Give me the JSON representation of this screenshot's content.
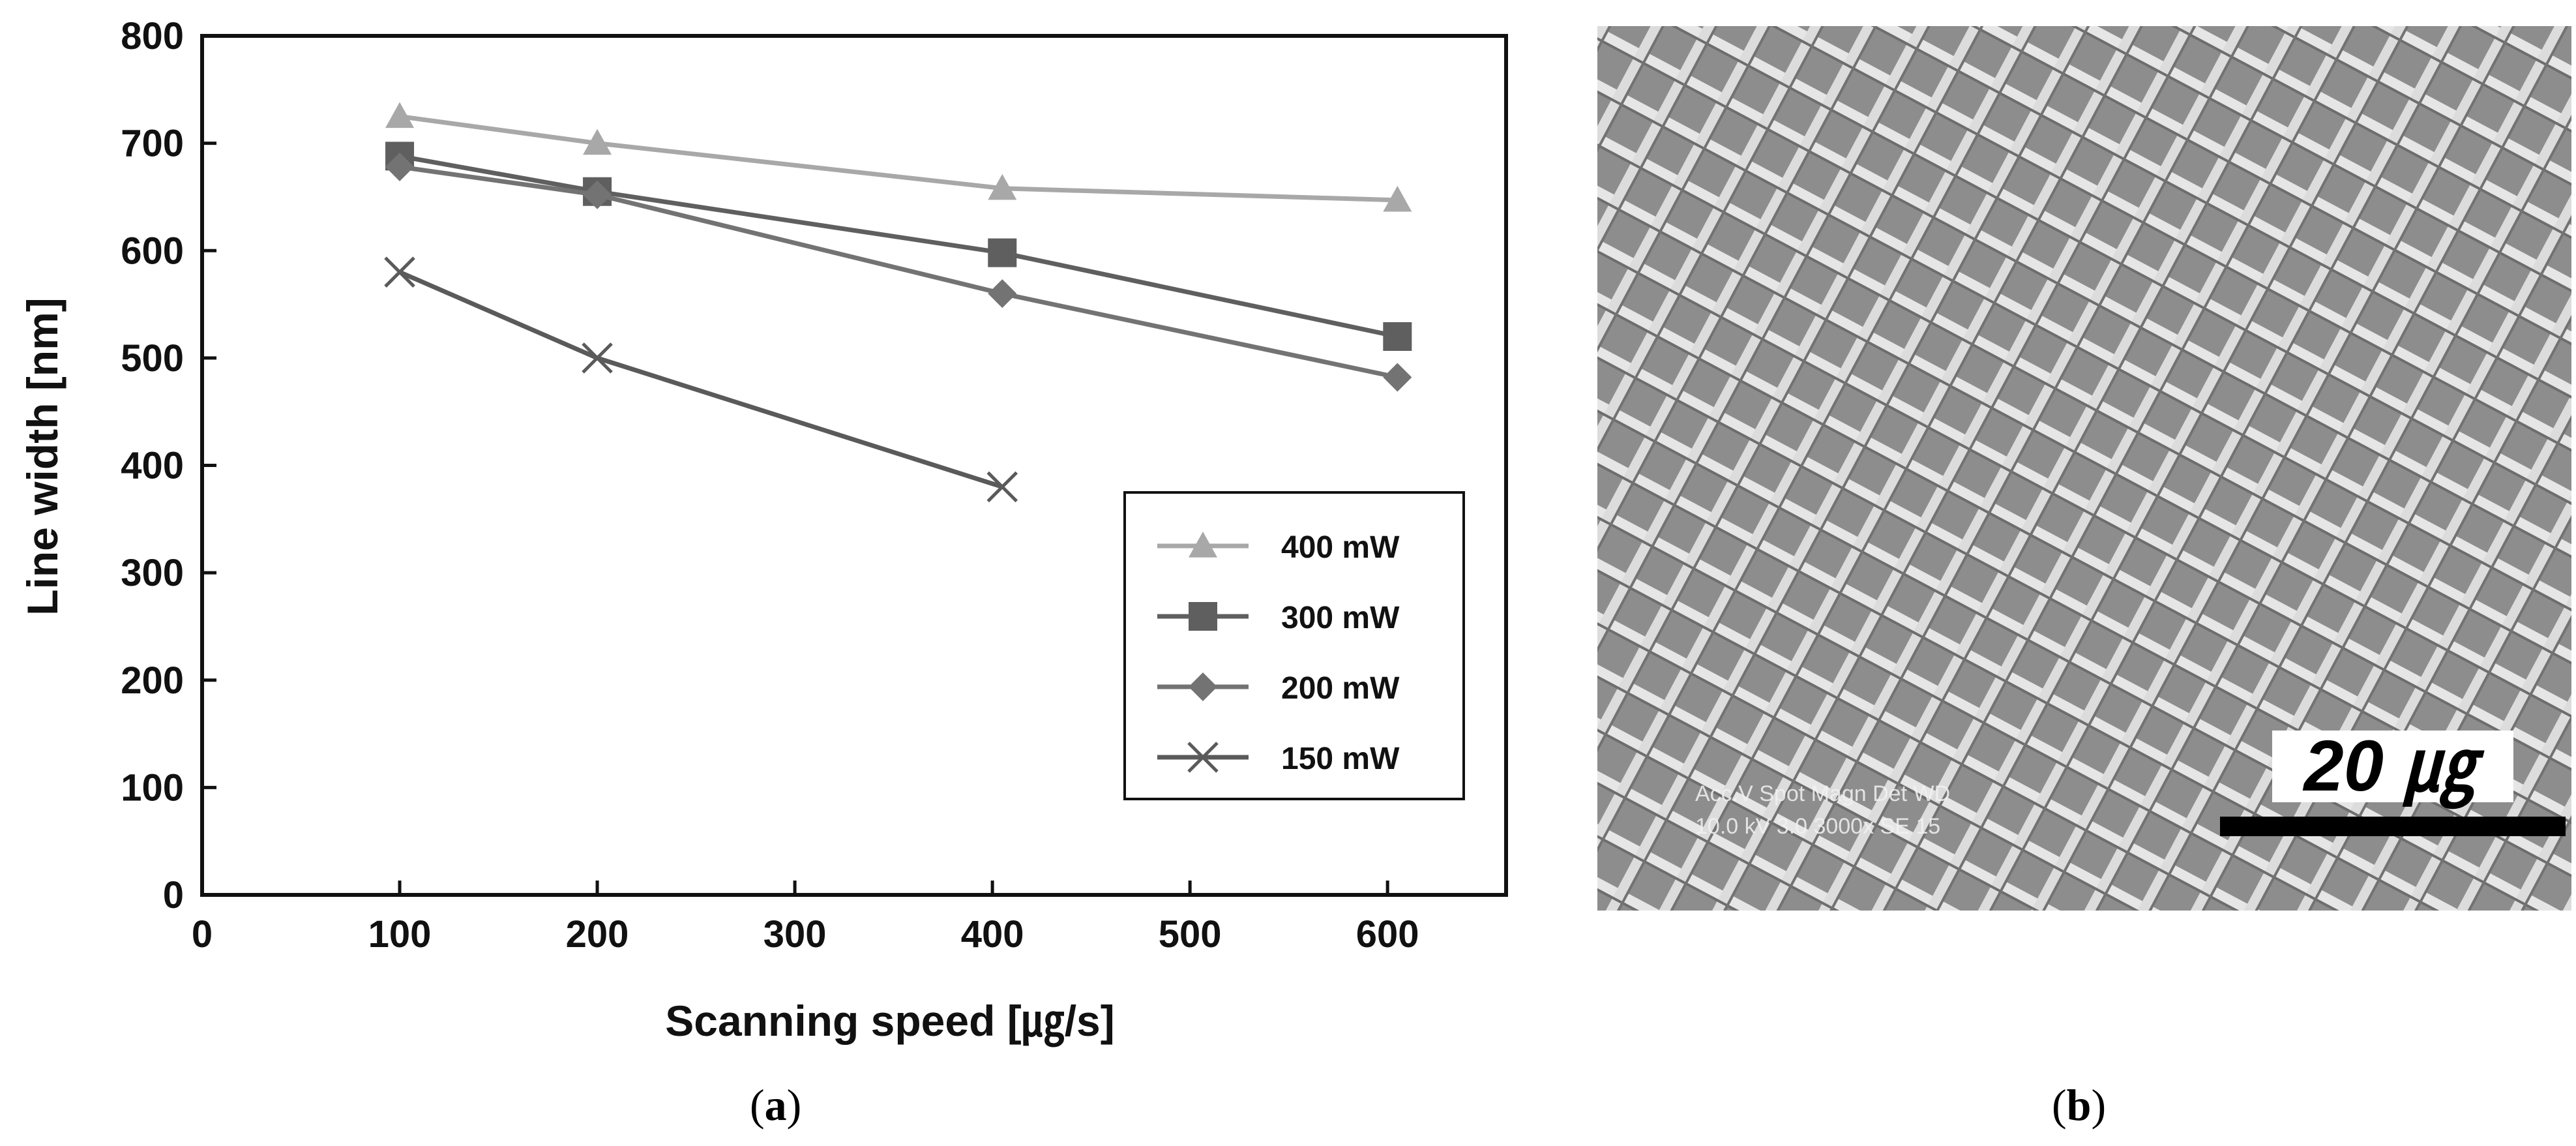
{
  "panels": {
    "a": "a",
    "b": "b"
  },
  "chart_data": {
    "type": "line",
    "title": "",
    "xlabel": "Scanning speed [㎍/s]",
    "ylabel": "Line width [nm]",
    "xlim": [
      0,
      660
    ],
    "ylim": [
      0,
      800
    ],
    "xticks": [
      0,
      100,
      200,
      300,
      400,
      500,
      600
    ],
    "yticks": [
      0,
      100,
      200,
      300,
      400,
      500,
      600,
      700,
      800
    ],
    "grid": false,
    "legend_position": "lower-right",
    "series": [
      {
        "name": "400 mW",
        "marker": "triangle",
        "color": "#a8a8a8",
        "x": [
          100,
          200,
          405,
          605
        ],
        "y": [
          725,
          700,
          658,
          647
        ]
      },
      {
        "name": "300 mW",
        "marker": "square",
        "color": "#5f5f5f",
        "x": [
          100,
          200,
          405,
          605
        ],
        "y": [
          688,
          655,
          598,
          520
        ]
      },
      {
        "name": "200 mW",
        "marker": "diamond",
        "color": "#737373",
        "x": [
          100,
          200,
          405,
          605
        ],
        "y": [
          678,
          652,
          560,
          482
        ]
      },
      {
        "name": "150 mW",
        "marker": "x",
        "color": "#5a5a5a",
        "x": [
          100,
          200,
          405
        ],
        "y": [
          580,
          500,
          380
        ]
      }
    ]
  },
  "sem_image": {
    "scale_bar_label": "20 ㎍",
    "info_header": "Acc.V Spot Magn Det WD",
    "info_values": "10.0 kV 3.0 3000x SE 15"
  }
}
